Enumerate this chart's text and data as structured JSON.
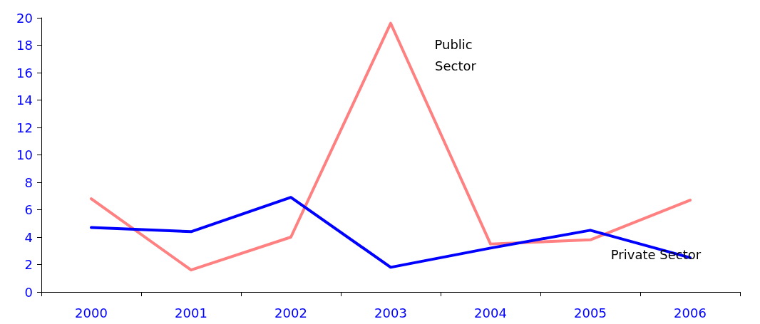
{
  "chart_data": {
    "type": "line",
    "categories": [
      "2000",
      "2001",
      "2002",
      "2003",
      "2004",
      "2005",
      "2006"
    ],
    "series": [
      {
        "name": "Public Sector",
        "color": "#ff8080",
        "values": [
          6.8,
          1.6,
          4.0,
          19.6,
          3.5,
          3.8,
          6.7
        ]
      },
      {
        "name": "Private Sector",
        "color": "#0000ff",
        "values": [
          4.7,
          4.4,
          6.9,
          1.8,
          3.2,
          4.5,
          2.5
        ]
      }
    ],
    "ylim": [
      0,
      20
    ],
    "yticks": [
      0,
      2,
      4,
      6,
      8,
      10,
      12,
      14,
      16,
      18,
      20
    ],
    "grid": false,
    "legend": false,
    "marker": "none",
    "line_style": "solid"
  }
}
